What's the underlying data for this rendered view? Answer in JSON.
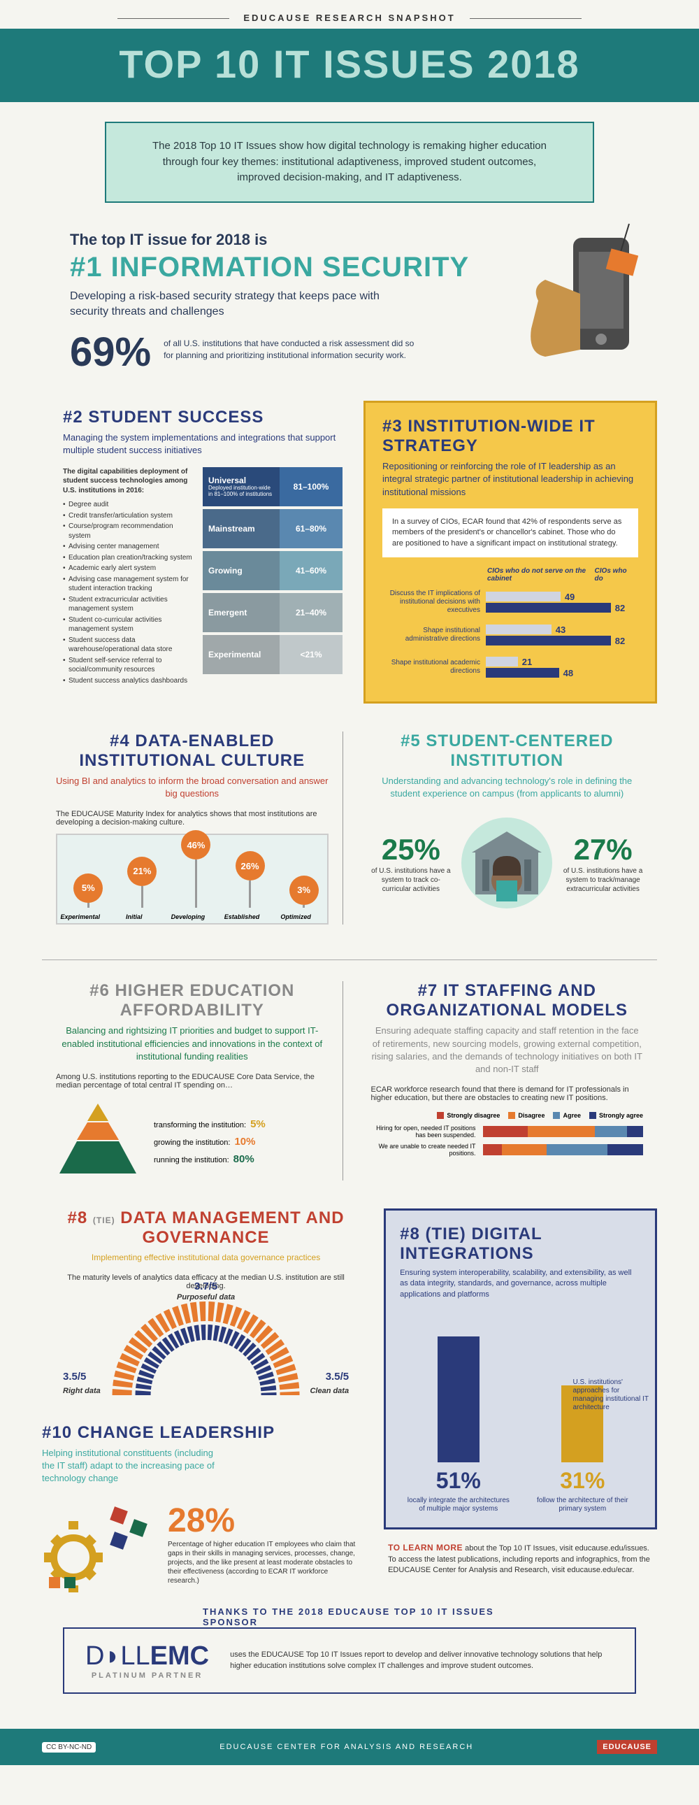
{
  "header": {
    "eyebrow": "EDUCAUSE RESEARCH SNAPSHOT",
    "title": "TOP 10 IT ISSUES 2018",
    "title_bg": "#1e7a7a",
    "title_color": "#b8e0d8"
  },
  "intro": "The 2018 Top 10 IT Issues show how digital technology is remaking higher education through four key themes: institutional adaptiveness, improved student outcomes, improved decision-making, and IT adaptiveness.",
  "issue1": {
    "lead": "The top IT issue for 2018 is",
    "name": "#1 INFORMATION SECURITY",
    "sub": "Developing a risk-based security strategy that keeps pace with security threats and challenges",
    "stat_num": "69%",
    "stat_text": "of all U.S. institutions that have conducted a risk assessment did so for planning and prioritizing institutional information security work.",
    "colors": {
      "lead": "#2a3a58",
      "name": "#3aa8a0"
    }
  },
  "issue2": {
    "title": "#2 STUDENT SUCCESS",
    "sub": "Managing the system implementations and integrations that support multiple student success initiatives",
    "left_heading": "The digital capabilities deployment of student success technologies among U.S. institutions in 2016:",
    "bullets": [
      "Degree audit",
      "Credit transfer/articulation system",
      "Course/program recommendation system",
      "Advising center management",
      "Education plan creation/tracking system",
      "Academic early alert system",
      "Advising case management system for student interaction tracking",
      "Student extracurricular activities management system",
      "Student co-curricular activities management system",
      "Student success data warehouse/operational data store",
      "Student self-service referral to social/community resources",
      "Student success analytics dashboards"
    ],
    "levels": [
      {
        "name": "Universal",
        "desc": "Deployed institution-wide in 81–100% of institutions",
        "range": "81–100%",
        "label_bg": "#2a4a7a",
        "bar_bg": "#3a6aa0"
      },
      {
        "name": "Mainstream",
        "desc": "",
        "range": "61–80%",
        "label_bg": "#4a6a8a",
        "bar_bg": "#5a88b0"
      },
      {
        "name": "Growing",
        "desc": "",
        "range": "41–60%",
        "label_bg": "#6a8a9a",
        "bar_bg": "#7aa8b8"
      },
      {
        "name": "Emergent",
        "desc": "",
        "range": "21–40%",
        "label_bg": "#8a9aa0",
        "bar_bg": "#a0b0b4"
      },
      {
        "name": "Experimental",
        "desc": "",
        "range": "<21%",
        "label_bg": "#a0a8aa",
        "bar_bg": "#c0c8ca"
      }
    ]
  },
  "issue3": {
    "title": "#3 INSTITUTION-WIDE IT STRATEGY",
    "sub": "Repositioning or reinforcing the role of IT leadership as an integral strategic partner of institutional leadership in achieving institutional missions",
    "note": "In a survey of CIOs, ECAR found that 42% of respondents serve as members of the president's or chancellor's cabinet. Those who do are positioned to have a significant impact on institutional strategy.",
    "legend": {
      "left": "CIOs who do not serve on the cabinet",
      "right": "CIOs who do"
    },
    "rows": [
      {
        "label": "Discuss the IT implications of institutional decisions with executives",
        "v1": 49,
        "v2": 82
      },
      {
        "label": "Shape institutional administrative directions",
        "v1": 43,
        "v2": 82
      },
      {
        "label": "Shape institutional academic directions",
        "v1": 21,
        "v2": 48
      }
    ],
    "colors": {
      "bar1": "#d0d4e0",
      "bar2": "#2a3a7a",
      "box_bg": "#f5c84a",
      "box_border": "#d4a020"
    }
  },
  "issue4": {
    "title": "#4 DATA-ENABLED INSTITUTIONAL CULTURE",
    "sub": "Using BI and analytics to inform the broad conversation and answer big questions",
    "note": "The EDUCAUSE Maturity Index for analytics shows that most institutions are developing a decision-making culture.",
    "data": [
      {
        "label": "Experimental",
        "value": 5
      },
      {
        "label": "Initial",
        "value": 21
      },
      {
        "label": "Developing",
        "value": 46
      },
      {
        "label": "Established",
        "value": 26
      },
      {
        "label": "Optimized",
        "value": 3
      }
    ],
    "colors": {
      "ball": "#e67a2e",
      "chart_bg": "#e8f2f0"
    }
  },
  "issue5": {
    "title": "#5 STUDENT-CENTERED INSTITUTION",
    "sub": "Understanding and advancing technology's role in defining the student experience on campus (from applicants to alumni)",
    "stat1": {
      "pct": "25%",
      "text": "of U.S. institutions have a system to track co-curricular activities"
    },
    "stat2": {
      "pct": "27%",
      "text": "of U.S. institutions have a system to track/manage extracurricular activities"
    },
    "colors": {
      "pct": "#1a7a4a"
    }
  },
  "issue6": {
    "title": "#6 HIGHER EDUCATION AFFORDABILITY",
    "sub": "Balancing and rightsizing IT priorities and budget to support IT-enabled institutional efficiencies and innovations in the context of institutional funding realities",
    "note": "Among U.S. institutions reporting to the EDUCAUSE Core Data Service, the median percentage of total central IT spending on…",
    "rows": [
      {
        "label": "transforming the institution:",
        "value": "5%",
        "color": "#d4a020"
      },
      {
        "label": "growing the institution:",
        "value": "10%",
        "color": "#e67a2e"
      },
      {
        "label": "running the institution:",
        "value": "80%",
        "color": "#1a6a4a"
      }
    ],
    "pyramid_colors": {
      "top": "#d4a020",
      "mid": "#e67a2e",
      "base": "#1a6a4a"
    }
  },
  "issue7": {
    "title": "#7 IT STAFFING AND ORGANIZATIONAL MODELS",
    "sub": "Ensuring adequate staffing capacity and staff retention in the face of retirements, new sourcing models, growing external competition, rising salaries, and the demands of technology initiatives on both IT and non-IT staff",
    "note": "ECAR workforce research found that there is demand for IT professionals in higher education, but there are obstacles to creating new IT positions.",
    "legend": [
      {
        "label": "Strongly disagree",
        "color": "#c04030"
      },
      {
        "label": "Disagree",
        "color": "#e67a2e"
      },
      {
        "label": "Agree",
        "color": "#5a88b0"
      },
      {
        "label": "Strongly agree",
        "color": "#2a3a7a"
      }
    ],
    "rows": [
      {
        "label": "Hiring for open, needed IT positions has been suspended.",
        "segs": [
          28,
          42,
          20,
          10
        ]
      },
      {
        "label": "We are unable to create needed IT positions.",
        "segs": [
          12,
          28,
          38,
          22
        ]
      }
    ]
  },
  "issue8": {
    "tie": "(TIE)",
    "title": "#8 DATA MANAGEMENT AND GOVERNANCE",
    "sub": "Implementing effective institutional data governance practices",
    "note": "The maturity levels of analytics data efficacy at the median U.S. institution are still developing.",
    "scores": [
      {
        "label": "Purposeful data",
        "score": "3.7/5"
      },
      {
        "label": "Right data",
        "score": "3.5/5"
      },
      {
        "label": "Clean data",
        "score": "3.5/5"
      }
    ],
    "colors": {
      "arc_outer": "#e67a2e",
      "arc_inner": "#2a3a7a"
    }
  },
  "issue9": {
    "tie": "(TIE)",
    "title": "#8 DIGITAL INTEGRATIONS",
    "sub": "Ensuring system interoperability, scalability, and extensibility, as well as data integrity, standards, and governance, across multiple applications and platforms",
    "sidenote": "U.S. institutions' approaches for managing institutional IT architecture",
    "cols": [
      {
        "pct": "51%",
        "height": 180,
        "color": "#2a3a7a",
        "pct_color": "#2a3a7a",
        "label": "locally integrate the architectures of multiple major systems"
      },
      {
        "pct": "31%",
        "height": 110,
        "color": "#d4a020",
        "pct_color": "#d4a020",
        "label": "follow the architecture of their primary system"
      }
    ],
    "box_bg": "#d8dde8"
  },
  "issue10": {
    "title": "#10 CHANGE LEADERSHIP",
    "sub": "Helping institutional constituents (including the IT staff) adapt to the increasing pace of technology change",
    "pct": "28%",
    "text": "Percentage of higher education IT employees who claim that gaps in their skills in managing services, processes, change, projects, and the like present at least moderate obstacles to their effectiveness (according to ECAR IT workforce research.)",
    "colors": {
      "pct": "#e67a2e",
      "gear1": "#d4a020",
      "gear2": "#e67a2e"
    }
  },
  "learn_more": {
    "lead": "TO LEARN MORE",
    "text": "about the Top 10 IT Issues, visit educause.edu/issues. To access the latest publications, including reports and infographics, from the EDUCAUSE Center for Analysis and Research, visit educause.edu/ecar."
  },
  "sponsor": {
    "thanks": "THANKS TO THE 2018 EDUCAUSE TOP 10 IT ISSUES SPONSOR",
    "logo_main": "D◗LL",
    "logo_emc": "EMC",
    "logo_sub": "PLATINUM PARTNER",
    "text": "uses the EDUCAUSE Top 10 IT Issues report to develop and deliver innovative technology solutions that help higher education institutions solve complex IT challenges and improve student outcomes."
  },
  "footer": {
    "cc": "CC BY-NC-ND",
    "center": "EDUCAUSE CENTER FOR ANALYSIS AND RESEARCH",
    "badge": "EDUCAUSE"
  }
}
